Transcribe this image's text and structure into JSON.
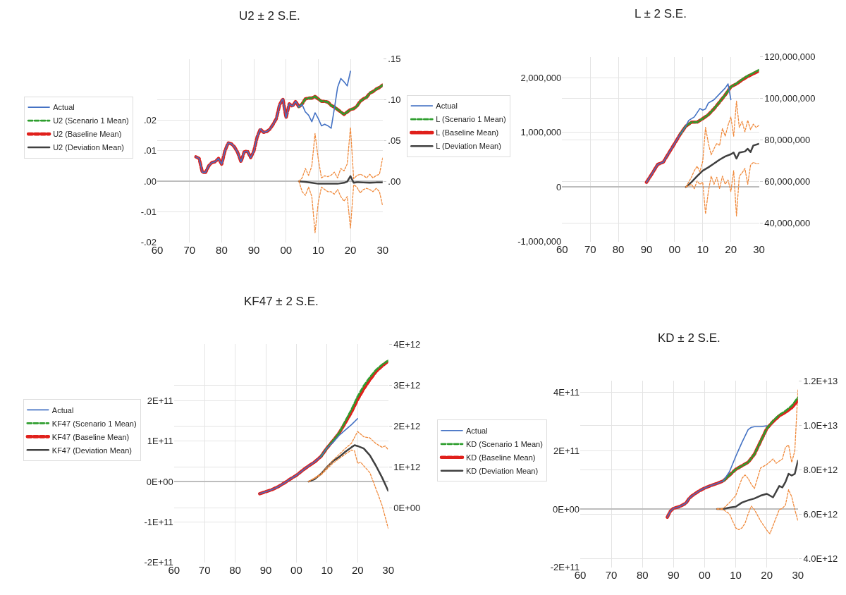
{
  "chart_data": [
    {
      "type": "line",
      "title": "U2 ± 2 S.E.",
      "legend": "left",
      "grid": true,
      "xlim": [
        1960,
        2030
      ],
      "xticks": [
        {
          "value": 1960,
          "label": "60"
        },
        {
          "value": 1970,
          "label": "70"
        },
        {
          "value": 1980,
          "label": "80"
        },
        {
          "value": 1990,
          "label": "90"
        },
        {
          "value": 2000,
          "label": "00"
        },
        {
          "value": 2010,
          "label": "10"
        },
        {
          "value": 2020,
          "label": "20"
        },
        {
          "value": 2030,
          "label": "30"
        }
      ],
      "ylim": [
        -0.02,
        0.04
      ],
      "yticks": [
        {
          "value": -0.02,
          "label": "-.02"
        },
        {
          "value": -0.01,
          "label": "-.01"
        },
        {
          "value": 0,
          "label": ".00"
        },
        {
          "value": 0.01,
          "label": ".01"
        },
        {
          "value": 0.02,
          "label": ".02"
        }
      ],
      "y2lim": [
        -0.075,
        0.15
      ],
      "y2ticks": [
        {
          "value": 0,
          "label": ".00"
        },
        {
          "value": 0.05,
          "label": ".05"
        },
        {
          "value": 0.1,
          "label": ".10"
        },
        {
          "value": 0.15,
          "label": ".15"
        }
      ],
      "series": [
        {
          "name": "Actual",
          "color": "#4472c4",
          "axis": "y2",
          "line_style": "solid",
          "x": [
            1972,
            1973,
            1974,
            1975,
            1976,
            1977,
            1978,
            1979,
            1980,
            1981,
            1982,
            1983,
            1984,
            1985,
            1986,
            1987,
            1988,
            1989,
            1990,
            1991,
            1992,
            1993,
            1994,
            1995,
            1996,
            1997,
            1998,
            1999,
            2000,
            2001,
            2002,
            2003,
            2004,
            2005,
            2006,
            2007,
            2008,
            2009,
            2010,
            2011,
            2012,
            2013,
            2014,
            2015,
            2016,
            2017,
            2018,
            2019,
            2020
          ],
          "values": [
            0.03,
            0.028,
            0.011,
            0.011,
            0.019,
            0.023,
            0.024,
            0.028,
            0.021,
            0.037,
            0.047,
            0.046,
            0.042,
            0.035,
            0.024,
            0.036,
            0.037,
            0.029,
            0.037,
            0.054,
            0.064,
            0.06,
            0.061,
            0.064,
            0.07,
            0.077,
            0.094,
            0.101,
            0.078,
            0.095,
            0.092,
            0.098,
            0.091,
            0.094,
            0.085,
            0.081,
            0.073,
            0.084,
            0.077,
            0.068,
            0.07,
            0.068,
            0.065,
            0.089,
            0.115,
            0.126,
            0.122,
            0.117,
            0.135
          ]
        },
        {
          "name": "U2 (Scenario 1 Mean)",
          "color": "#2e9e2e",
          "axis": "y2",
          "line_style": "dashed",
          "x": [
            2004,
            2005,
            2006,
            2007,
            2008,
            2009,
            2010,
            2011,
            2012,
            2013,
            2014,
            2015,
            2016,
            2017,
            2018,
            2019,
            2020,
            2021,
            2022,
            2023,
            2024,
            2025,
            2026,
            2027,
            2028,
            2029,
            2030
          ],
          "values": [
            0.091,
            0.095,
            0.101,
            0.102,
            0.102,
            0.104,
            0.101,
            0.098,
            0.098,
            0.097,
            0.093,
            0.091,
            0.088,
            0.085,
            0.082,
            0.085,
            0.088,
            0.089,
            0.092,
            0.098,
            0.101,
            0.103,
            0.108,
            0.11,
            0.113,
            0.115,
            0.118
          ]
        },
        {
          "name": "U2 (Baseline Mean)",
          "color": "#e0201b",
          "axis": "y2",
          "line_style": "dashed",
          "x": [
            1972,
            1973,
            1974,
            1975,
            1976,
            1977,
            1978,
            1979,
            1980,
            1981,
            1982,
            1983,
            1984,
            1985,
            1986,
            1987,
            1988,
            1989,
            1990,
            1991,
            1992,
            1993,
            1994,
            1995,
            1996,
            1997,
            1998,
            1999,
            2000,
            2001,
            2002,
            2003,
            2004,
            2005,
            2006,
            2007,
            2008,
            2009,
            2010,
            2011,
            2012,
            2013,
            2014,
            2015,
            2016,
            2017,
            2018,
            2019,
            2020,
            2021,
            2022,
            2023,
            2024,
            2025,
            2026,
            2027,
            2028,
            2029,
            2030
          ],
          "values": [
            0.03,
            0.028,
            0.011,
            0.011,
            0.019,
            0.023,
            0.024,
            0.028,
            0.021,
            0.037,
            0.047,
            0.046,
            0.042,
            0.035,
            0.024,
            0.036,
            0.037,
            0.029,
            0.037,
            0.054,
            0.064,
            0.06,
            0.061,
            0.064,
            0.07,
            0.077,
            0.094,
            0.101,
            0.078,
            0.095,
            0.092,
            0.098,
            0.091,
            0.095,
            0.101,
            0.102,
            0.102,
            0.104,
            0.101,
            0.098,
            0.098,
            0.097,
            0.093,
            0.091,
            0.088,
            0.085,
            0.082,
            0.085,
            0.088,
            0.089,
            0.092,
            0.098,
            0.101,
            0.103,
            0.108,
            0.11,
            0.113,
            0.115,
            0.118
          ]
        },
        {
          "name": "U2 (Deviation Mean)",
          "color": "#404040",
          "axis": "y",
          "line_style": "solid",
          "x": [
            2004,
            2006,
            2008,
            2010,
            2012,
            2014,
            2016,
            2018,
            2019,
            2020,
            2021,
            2022,
            2024,
            2026,
            2028,
            2030
          ],
          "values": [
            0,
            -0.0002,
            -0.0005,
            -0.0008,
            -0.0008,
            -0.0008,
            -0.0008,
            -0.0005,
            -0.0001,
            0.0017,
            -0.0005,
            -0.0003,
            -0.0004,
            -0.0005,
            -0.0004,
            -0.0004
          ]
        },
        {
          "color": "#f08a3c",
          "axis": "y",
          "line_style": "dotted",
          "x": [
            2004,
            2005,
            2006,
            2007,
            2008,
            2009,
            2010,
            2011,
            2012,
            2013,
            2014,
            2015,
            2016,
            2017,
            2018,
            2019,
            2020,
            2021,
            2022,
            2023,
            2024,
            2025,
            2026,
            2027,
            2028,
            2029,
            2030
          ],
          "values": [
            0,
            0.0011,
            0.0042,
            0.0019,
            0.005,
            0.0156,
            0.0073,
            0.0011,
            0.0018,
            0.0015,
            0.002,
            0.003,
            0.0011,
            0.0042,
            0.0034,
            0.0057,
            0.0176,
            0.0008,
            0.0019,
            0.0023,
            0.0019,
            0.0011,
            0.0023,
            0.0011,
            0.0019,
            0.0023,
            0.0076
          ]
        },
        {
          "color": "#f08a3c",
          "axis": "y",
          "line_style": "dotted",
          "x": [
            2004,
            2005,
            2006,
            2007,
            2008,
            2009,
            2010,
            2011,
            2012,
            2013,
            2014,
            2015,
            2016,
            2017,
            2018,
            2019,
            2020,
            2021,
            2022,
            2023,
            2024,
            2025,
            2026,
            2027,
            2028,
            2029,
            2030
          ],
          "values": [
            0,
            -0.0034,
            -0.0046,
            -0.0019,
            -0.005,
            -0.0168,
            -0.0069,
            -0.0019,
            -0.0027,
            -0.0034,
            -0.0034,
            -0.0042,
            -0.0027,
            -0.005,
            -0.0065,
            -0.005,
            -0.0153,
            -0.0011,
            -0.0019,
            -0.0038,
            -0.0027,
            -0.0023,
            -0.0027,
            -0.0034,
            -0.0023,
            -0.0034,
            -0.008
          ]
        }
      ]
    },
    {
      "type": "line",
      "title": "L ± 2 S.E.",
      "legend": "left",
      "grid": true,
      "xlim": [
        1960,
        2030
      ],
      "xticks": [
        {
          "value": 1960,
          "label": "60"
        },
        {
          "value": 1970,
          "label": "70"
        },
        {
          "value": 1980,
          "label": "80"
        },
        {
          "value": 1990,
          "label": "90"
        },
        {
          "value": 2000,
          "label": "00"
        },
        {
          "value": 2010,
          "label": "10"
        },
        {
          "value": 2020,
          "label": "20"
        },
        {
          "value": 2030,
          "label": "30"
        }
      ],
      "ylim": [
        -1000000,
        2380000
      ],
      "yticks": [
        {
          "value": -1000000,
          "label": "-1,000,000"
        },
        0,
        {
          "value": 1000000,
          "label": "1,000,000"
        },
        {
          "value": 2000000,
          "label": "2,000,000"
        }
      ],
      "y2lim": [
        31100000,
        120000000
      ],
      "y2ticks": [
        {
          "value": 40000000,
          "label": "40,000,000"
        },
        {
          "value": 60000000,
          "label": "60,000,000"
        },
        {
          "value": 80000000,
          "label": "80,000,000"
        },
        {
          "value": 100000000,
          "label": "100,000,000"
        },
        {
          "value": 120000000,
          "label": "120,000,000"
        }
      ],
      "series": [
        {
          "name": "Actual",
          "color": "#4472c4",
          "axis": "y2",
          "line_style": "solid",
          "x": [
            1990,
            1992,
            1994,
            1996,
            1998,
            2000,
            2002,
            2004,
            2005,
            2007,
            2009,
            2010,
            2011,
            2012,
            2014,
            2016,
            2018,
            2019,
            2020
          ],
          "values": [
            59700000,
            63900000,
            68300000,
            69400000,
            73900000,
            78300000,
            82800000,
            86700000,
            89400000,
            91100000,
            95200000,
            94400000,
            95000000,
            97800000,
            99400000,
            102200000,
            105000000,
            107000000,
            99400000
          ]
        },
        {
          "name": "L (Scenario 1 Mean)",
          "color": "#2e9e2e",
          "axis": "y2",
          "line_style": "dashed",
          "x": [
            2002,
            2004,
            2006,
            2008,
            2010,
            2012,
            2014,
            2016,
            2018,
            2020,
            2022,
            2024,
            2026,
            2028,
            2030
          ],
          "values": [
            82800000,
            86700000,
            88600000,
            88600000,
            90300000,
            92200000,
            95000000,
            98300000,
            101700000,
            105600000,
            107200000,
            109200000,
            110900000,
            112300000,
            113700000
          ]
        },
        {
          "name": "L (Baseline Mean)",
          "color": "#e0201b",
          "axis": "y2",
          "line_style": "dashed",
          "x": [
            1990,
            1992,
            1994,
            1996,
            1998,
            2000,
            2002,
            2004,
            2006,
            2008,
            2010,
            2012,
            2014,
            2016,
            2018,
            2020,
            2022,
            2024,
            2026,
            2028,
            2030
          ],
          "values": [
            59700000,
            63900000,
            68300000,
            69400000,
            73900000,
            78300000,
            82800000,
            86700000,
            88600000,
            88600000,
            90300000,
            92200000,
            95000000,
            98300000,
            101700000,
            105600000,
            107000000,
            108900000,
            110600000,
            111900000,
            113300000
          ]
        },
        {
          "name": "L (Deviation Mean)",
          "color": "#404040",
          "axis": "y",
          "line_style": "solid",
          "x": [
            2004,
            2006,
            2008,
            2010,
            2012,
            2014,
            2016,
            2018,
            2020,
            2021,
            2022,
            2023,
            2025,
            2026,
            2027,
            2028,
            2030
          ],
          "values": [
            0,
            90000,
            200000,
            300000,
            360000,
            430000,
            500000,
            560000,
            600000,
            630000,
            520000,
            630000,
            650000,
            700000,
            640000,
            760000,
            790000
          ]
        },
        {
          "color": "#f08a3c",
          "axis": "y",
          "line_style": "dotted",
          "x": [
            2004,
            2006,
            2007,
            2008,
            2009,
            2010,
            2011,
            2012,
            2013,
            2014,
            2015,
            2016,
            2017,
            2018,
            2019,
            2020,
            2021,
            2022,
            2023,
            2024,
            2025,
            2026,
            2027,
            2028,
            2029,
            2030
          ],
          "values": [
            0,
            180000,
            300000,
            380000,
            280000,
            470000,
            1090000,
            800000,
            590000,
            700000,
            800000,
            760000,
            1070000,
            930000,
            1130000,
            1280000,
            930000,
            1570000,
            1090000,
            1200000,
            1010000,
            1220000,
            1050000,
            1150000,
            1090000,
            1130000
          ]
        },
        {
          "color": "#f08a3c",
          "axis": "y",
          "line_style": "dotted",
          "x": [
            2004,
            2006,
            2007,
            2008,
            2009,
            2010,
            2011,
            2012,
            2013,
            2014,
            2015,
            2016,
            2017,
            2018,
            2019,
            2020,
            2021,
            2022,
            2023,
            2024,
            2025,
            2026,
            2027,
            2028,
            2029,
            2030
          ],
          "values": [
            0,
            50000,
            -30000,
            110000,
            50000,
            90000,
            -490000,
            -80000,
            200000,
            50000,
            180000,
            -30000,
            200000,
            50000,
            130000,
            -80000,
            300000,
            -530000,
            200000,
            260000,
            340000,
            50000,
            400000,
            450000,
            430000,
            430000
          ]
        }
      ]
    },
    {
      "type": "line",
      "title": "KF47 ± 2 S.E.",
      "legend": "left",
      "grid": true,
      "xlim": [
        1960,
        2030
      ],
      "xticks": [
        {
          "value": 1960,
          "label": "60"
        },
        {
          "value": 1970,
          "label": "70"
        },
        {
          "value": 1980,
          "label": "80"
        },
        {
          "value": 1990,
          "label": "90"
        },
        {
          "value": 2000,
          "label": "00"
        },
        {
          "value": 2010,
          "label": "10"
        },
        {
          "value": 2020,
          "label": "20"
        },
        {
          "value": 2030,
          "label": "30"
        }
      ],
      "ylim": [
        -200000000000.0,
        340000000000.0
      ],
      "yticks": [
        {
          "value": -200000000000.0,
          "label": "-2E+11"
        },
        {
          "value": -100000000000.0,
          "label": "-1E+11"
        },
        {
          "value": 0,
          "label": "0E+00"
        },
        {
          "value": 100000000000.0,
          "label": "1E+11"
        },
        {
          "value": 200000000000.0,
          "label": "2E+11"
        }
      ],
      "y2lim": [
        -1340000000000.0,
        4000000000000.0
      ],
      "y2ticks": [
        {
          "value": 0,
          "label": "0E+00"
        },
        {
          "value": 1000000000000.0,
          "label": "1E+12"
        },
        {
          "value": 2000000000000.0,
          "label": "2E+12"
        },
        {
          "value": 3000000000000.0,
          "label": "3E+12"
        },
        {
          "value": 4000000000000.0,
          "label": "4E+12"
        }
      ],
      "series": [
        {
          "name": "Actual",
          "color": "#4472c4",
          "axis": "y2",
          "line_style": "solid",
          "x": [
            1988,
            1990,
            1992,
            1994,
            1996,
            1998,
            2000,
            2002,
            2004,
            2006,
            2008,
            2010,
            2012,
            2014,
            2016,
            2018,
            2020
          ],
          "values": [
            340000000000.0,
            390000000000.0,
            440000000000.0,
            510000000000.0,
            600000000000.0,
            700000000000.0,
            790000000000.0,
            910000000000.0,
            1020000000000.0,
            1120000000000.0,
            1250000000000.0,
            1460000000000.0,
            1600000000000.0,
            1770000000000.0,
            1900000000000.0,
            2030000000000.0,
            2180000000000.0
          ]
        },
        {
          "name": "KF47 (Scenario 1 Mean)",
          "color": "#2e9e2e",
          "axis": "y2",
          "line_style": "dashed",
          "x": [
            2008,
            2010,
            2012,
            2014,
            2016,
            2018,
            2020,
            2022,
            2024,
            2026,
            2028,
            2030
          ],
          "values": [
            1250000000000.0,
            1460000000000.0,
            1640000000000.0,
            1830000000000.0,
            2120000000000.0,
            2400000000000.0,
            2720000000000.0,
            2980000000000.0,
            3190000000000.0,
            3370000000000.0,
            3500000000000.0,
            3600000000000.0
          ]
        },
        {
          "name": "KF47 (Baseline Mean)",
          "color": "#e0201b",
          "axis": "y2",
          "line_style": "dashed",
          "x": [
            1988,
            1990,
            1992,
            1994,
            1996,
            1998,
            2000,
            2002,
            2004,
            2006,
            2008,
            2010,
            2012,
            2014,
            2016,
            2018,
            2020,
            2022,
            2024,
            2026,
            2028,
            2030
          ],
          "values": [
            340000000000.0,
            390000000000.0,
            440000000000.0,
            510000000000.0,
            600000000000.0,
            700000000000.0,
            790000000000.0,
            910000000000.0,
            1020000000000.0,
            1120000000000.0,
            1250000000000.0,
            1460000000000.0,
            1640000000000.0,
            1830000000000.0,
            2080000000000.0,
            2340000000000.0,
            2650000000000.0,
            2910000000000.0,
            3130000000000.0,
            3330000000000.0,
            3470000000000.0,
            3590000000000.0
          ]
        },
        {
          "name": "KF47 (Deviation Mean)",
          "color": "#404040",
          "axis": "y",
          "line_style": "solid",
          "x": [
            2004,
            2006,
            2008,
            2010,
            2012,
            2014,
            2016,
            2018,
            2019,
            2020,
            2022,
            2024,
            2026,
            2028,
            2030
          ],
          "values": [
            0,
            6000000000.0,
            19000000000.0,
            36000000000.0,
            51000000000.0,
            61000000000.0,
            74000000000.0,
            85000000000.0,
            90000000000.0,
            88000000000.0,
            82000000000.0,
            65000000000.0,
            39000000000.0,
            10000000000.0,
            -23000000000.0
          ]
        },
        {
          "color": "#f08a3c",
          "axis": "y",
          "line_style": "dotted",
          "x": [
            2004,
            2008,
            2012,
            2016,
            2018,
            2020,
            2022,
            2024,
            2026,
            2028,
            2029,
            2030
          ],
          "values": [
            0,
            19000000000.0,
            53000000000.0,
            82000000000.0,
            95000000000.0,
            124000000000.0,
            111000000000.0,
            108000000000.0,
            94000000000.0,
            85000000000.0,
            88000000000.0,
            79000000000.0
          ]
        },
        {
          "color": "#f08a3c",
          "axis": "y",
          "line_style": "dotted",
          "x": [
            2004,
            2008,
            2012,
            2016,
            2018,
            2019,
            2020,
            2021,
            2022,
            2024,
            2026,
            2028,
            2030
          ],
          "values": [
            0,
            16000000000.0,
            46000000000.0,
            68000000000.0,
            78000000000.0,
            76000000000.0,
            45000000000.0,
            48000000000.0,
            39000000000.0,
            22000000000.0,
            -18000000000.0,
            -59000000000.0,
            -116000000000.0
          ]
        }
      ]
    },
    {
      "type": "line",
      "title": "KD ± 2 S.E.",
      "legend": "left",
      "grid": true,
      "xlim": [
        1960,
        2030
      ],
      "xticks": [
        {
          "value": 1960,
          "label": "60"
        },
        {
          "value": 1970,
          "label": "70"
        },
        {
          "value": 1980,
          "label": "80"
        },
        {
          "value": 1990,
          "label": "90"
        },
        {
          "value": 2000,
          "label": "00"
        },
        {
          "value": 2010,
          "label": "10"
        },
        {
          "value": 2020,
          "label": "20"
        },
        {
          "value": 2030,
          "label": "30"
        }
      ],
      "ylim": [
        -200000000000.0,
        440000000000.0
      ],
      "yticks": [
        {
          "value": -200000000000.0,
          "label": "-2E+11"
        },
        {
          "value": 0,
          "label": "0E+00"
        },
        {
          "value": 200000000000.0,
          "label": "2E+11"
        },
        {
          "value": 400000000000.0,
          "label": "4E+11"
        }
      ],
      "y2lim": [
        3620000000000.0,
        12000000000000.0
      ],
      "y2ticks": [
        {
          "value": 4000000000000.0,
          "label": "4.0E+12"
        },
        {
          "value": 6000000000000.0,
          "label": "6.0E+12"
        },
        {
          "value": 8000000000000.0,
          "label": "8.0E+12"
        },
        {
          "value": 10000000000000.0,
          "label": "1.0E+13"
        },
        {
          "value": 12000000000000.0,
          "label": "1.2E+13"
        }
      ],
      "series": [
        {
          "name": "Actual",
          "color": "#4472c4",
          "axis": "y2",
          "line_style": "solid",
          "x": [
            1988,
            1989,
            1990,
            1992,
            1994,
            1995,
            1996,
            1998,
            2000,
            2002,
            2004,
            2006,
            2008,
            2010,
            2012,
            2014,
            2015,
            2016,
            2018,
            2020
          ],
          "values": [
            5870000000000.0,
            6140000000000.0,
            6270000000000.0,
            6350000000000.0,
            6500000000000.0,
            6710000000000.0,
            6840000000000.0,
            7030000000000.0,
            7180000000000.0,
            7290000000000.0,
            7390000000000.0,
            7500000000000.0,
            7920000000000.0,
            8600000000000.0,
            9230000000000.0,
            9810000000000.0,
            9910000000000.0,
            9940000000000.0,
            9940000000000.0,
            9980000000000.0
          ]
        },
        {
          "name": "KD (Scenario 1 Mean)",
          "color": "#2e9e2e",
          "axis": "y2",
          "line_style": "dashed",
          "x": [
            2006,
            2008,
            2010,
            2012,
            2014,
            2016,
            2018,
            2020,
            2022,
            2024,
            2026,
            2028,
            2030
          ],
          "values": [
            7500000000000.0,
            7760000000000.0,
            8020000000000.0,
            8180000000000.0,
            8340000000000.0,
            8700000000000.0,
            9280000000000.0,
            9860000000000.0,
            10200000000000.0,
            10470000000000.0,
            10650000000000.0,
            10880000000000.0,
            11250000000000.0
          ]
        },
        {
          "name": "KD (Baseline Mean)",
          "color": "#e0201b",
          "axis": "y2",
          "line_style": "dashed",
          "x": [
            1988,
            1989,
            1990,
            1992,
            1994,
            1995,
            1996,
            1998,
            2000,
            2002,
            2004,
            2006,
            2008,
            2010,
            2012,
            2014,
            2016,
            2018,
            2020,
            2022,
            2024,
            2026,
            2028,
            2030
          ],
          "values": [
            5870000000000.0,
            6140000000000.0,
            6270000000000.0,
            6350000000000.0,
            6500000000000.0,
            6710000000000.0,
            6840000000000.0,
            7030000000000.0,
            7180000000000.0,
            7290000000000.0,
            7390000000000.0,
            7500000000000.0,
            7760000000000.0,
            8020000000000.0,
            8180000000000.0,
            8340000000000.0,
            8700000000000.0,
            9280000000000.0,
            9860000000000.0,
            10170000000000.0,
            10430000000000.0,
            10590000000000.0,
            10800000000000.0,
            11120000000000.0
          ]
        },
        {
          "name": "KD (Deviation Mean)",
          "color": "#404040",
          "axis": "y",
          "line_style": "solid",
          "x": [
            2004,
            2006,
            2008,
            2010,
            2012,
            2014,
            2016,
            2018,
            2020,
            2022,
            2024,
            2025,
            2026,
            2027,
            2028,
            2029,
            2030
          ],
          "values": [
            0,
            0,
            5000000000.0,
            8000000000.0,
            22000000000.0,
            30000000000.0,
            36000000000.0,
            46000000000.0,
            52000000000.0,
            40000000000.0,
            79000000000.0,
            74000000000.0,
            93000000000.0,
            121000000000.0,
            115000000000.0,
            121000000000.0,
            166000000000.0
          ]
        },
        {
          "color": "#f08a3c",
          "axis": "y",
          "line_style": "dotted",
          "x": [
            2004,
            2006,
            2008,
            2010,
            2012,
            2013,
            2014,
            2015,
            2016,
            2018,
            2020,
            2022,
            2023,
            2025,
            2026,
            2027,
            2028,
            2029,
            2030
          ],
          "values": [
            0,
            2000000000.0,
            22000000000.0,
            46000000000.0,
            105000000000.0,
            117000000000.0,
            105000000000.0,
            85000000000.0,
            70000000000.0,
            141000000000.0,
            153000000000.0,
            172000000000.0,
            157000000000.0,
            172000000000.0,
            212000000000.0,
            220000000000.0,
            160000000000.0,
            200000000000.0,
            409000000000.0
          ]
        },
        {
          "color": "#f08a3c",
          "axis": "y",
          "line_style": "dotted",
          "x": [
            2004,
            2006,
            2008,
            2010,
            2011,
            2012,
            2013,
            2014,
            2015,
            2016,
            2018,
            2020,
            2021,
            2022,
            2024,
            2025,
            2026,
            2027,
            2028,
            2029,
            2030
          ],
          "values": [
            0,
            -2000000000.0,
            -17000000000.0,
            -65000000000.0,
            -71000000000.0,
            -65000000000.0,
            -49000000000.0,
            -17000000000.0,
            10000000000.0,
            -2000000000.0,
            -41000000000.0,
            -73000000000.0,
            -85000000000.0,
            -57000000000.0,
            -2000000000.0,
            2000000000.0,
            14000000000.0,
            66000000000.0,
            42000000000.0,
            -2000000000.0,
            -41000000000.0
          ]
        }
      ]
    }
  ]
}
